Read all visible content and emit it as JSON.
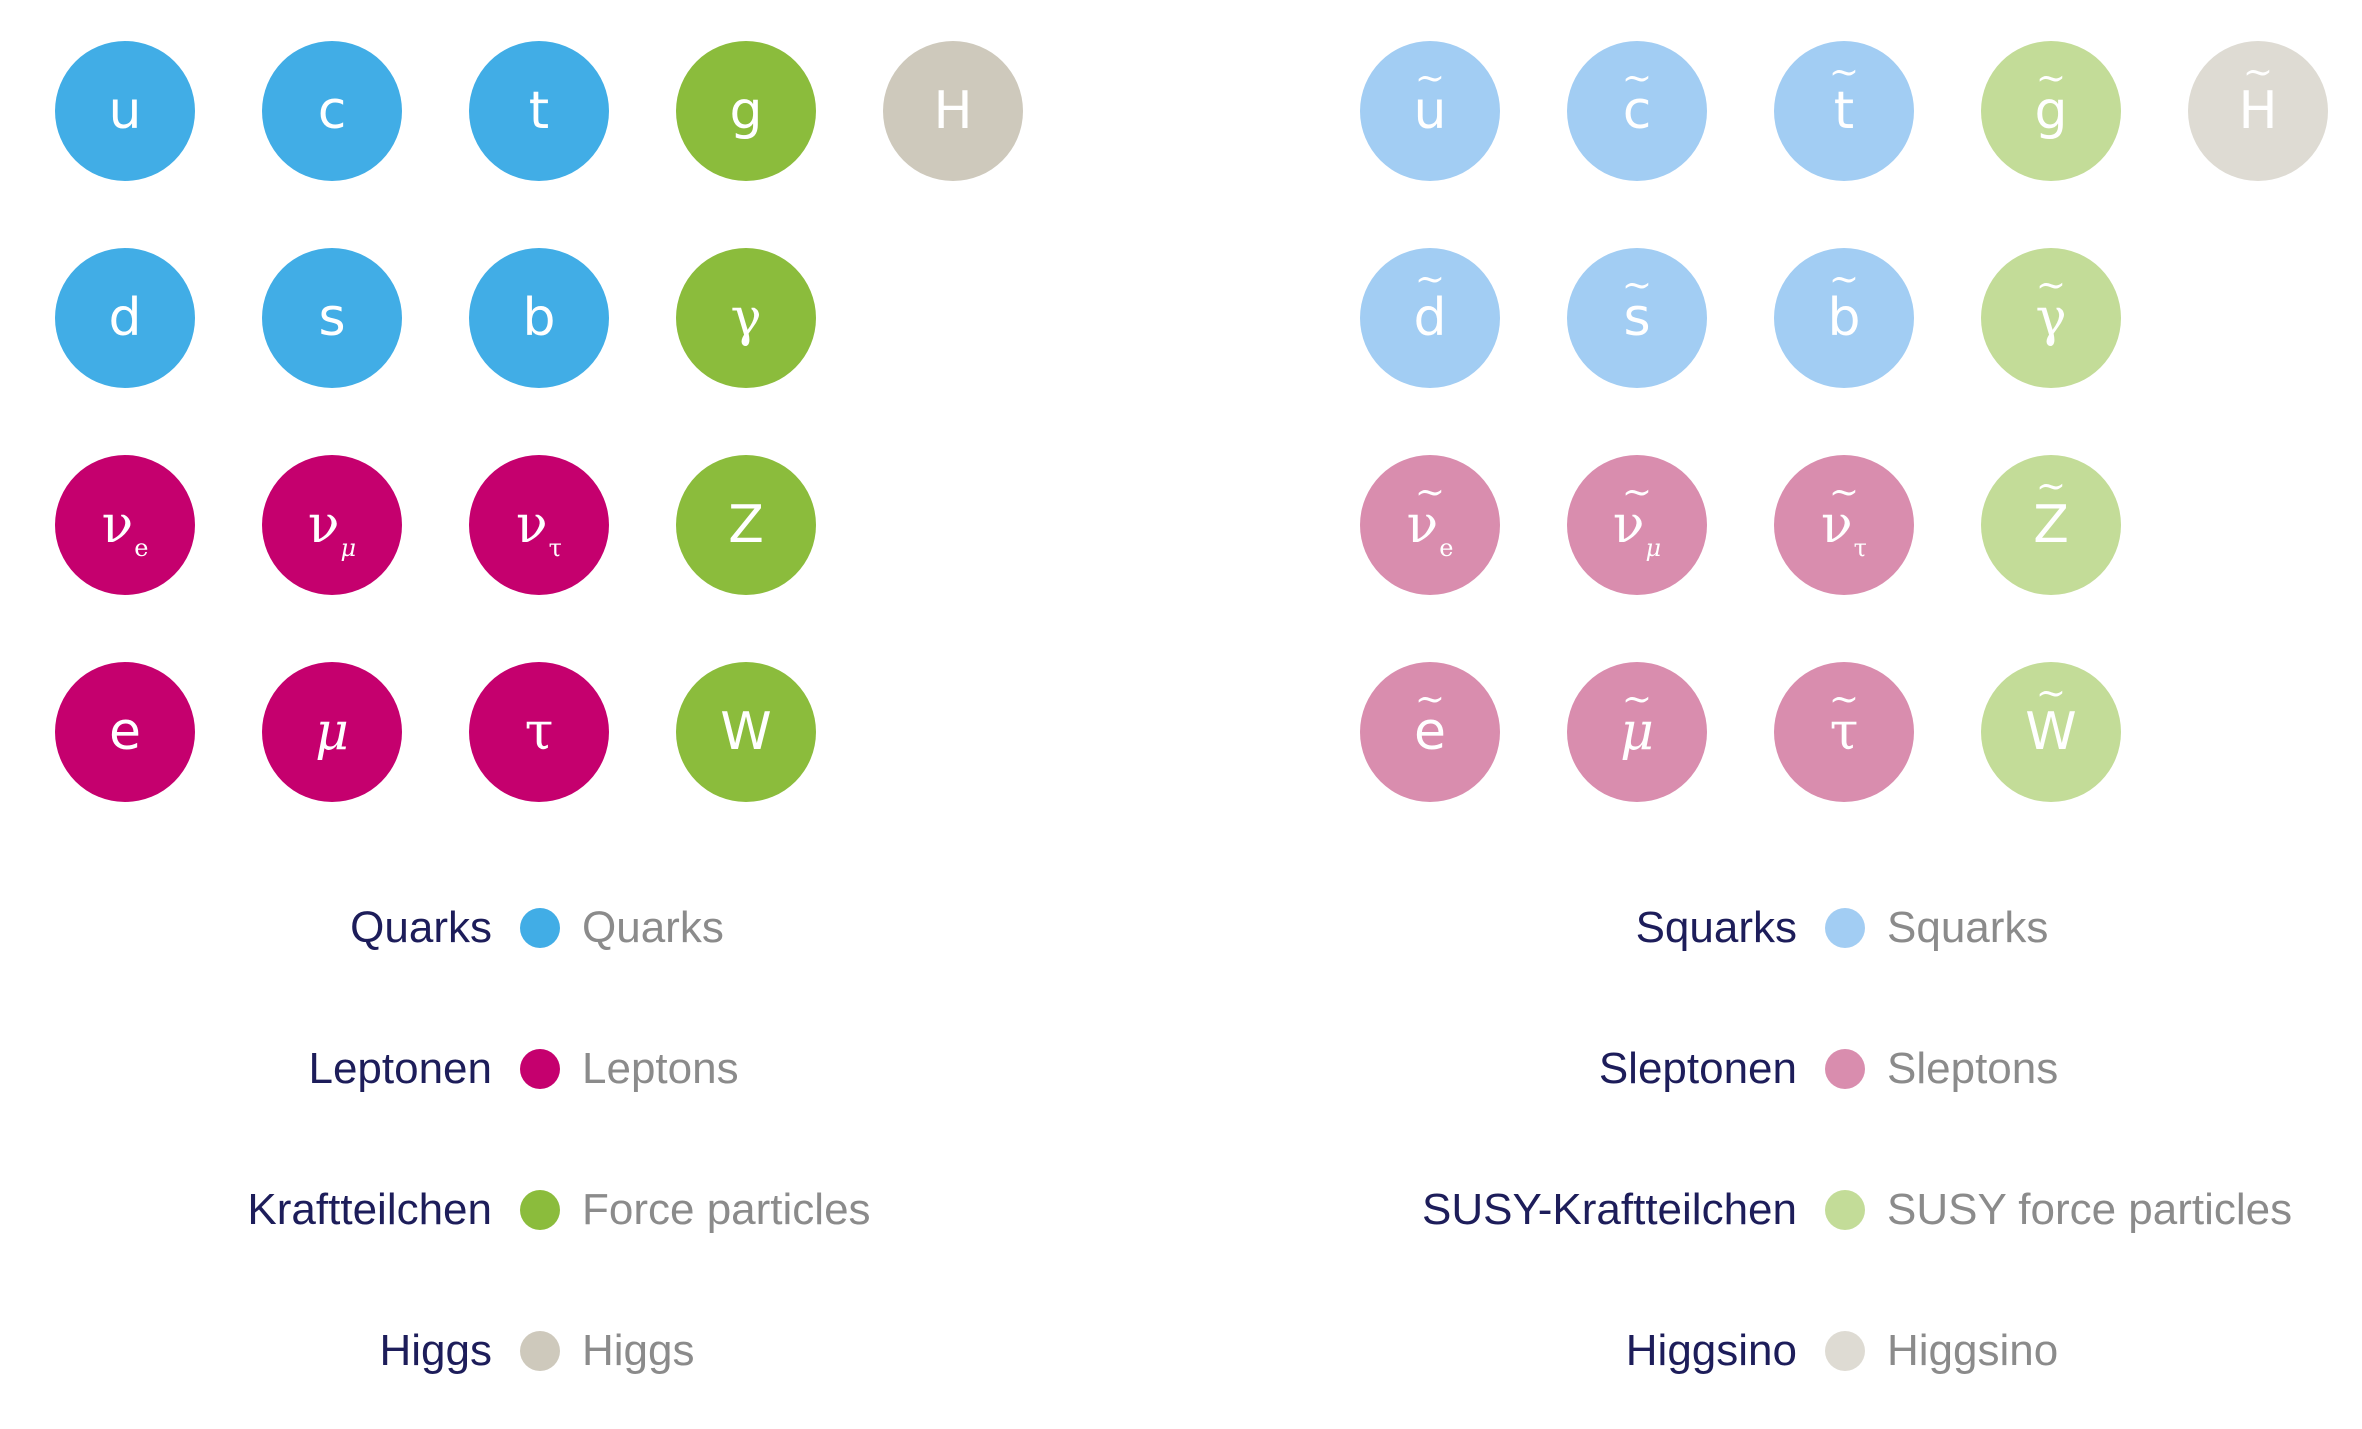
{
  "colors": {
    "quark": "#41ade6",
    "lepton": "#c5006e",
    "force": "#8bbc3c",
    "higgs": "#cec9bc",
    "squark": "#a2cdf3",
    "slepton": "#d98dae",
    "susy_force": "#c3dc98",
    "higgsino": "#dedbd3",
    "label_de": "#1d1d5a",
    "label_en": "#8b8b8b"
  },
  "standard_model": {
    "particles": [
      {
        "id": "u",
        "symbol": "u",
        "sub": "",
        "kind": "quark"
      },
      {
        "id": "c",
        "symbol": "c",
        "sub": "",
        "kind": "quark"
      },
      {
        "id": "t",
        "symbol": "t",
        "sub": "",
        "kind": "quark"
      },
      {
        "id": "g",
        "symbol": "g",
        "sub": "",
        "kind": "force"
      },
      {
        "id": "H",
        "symbol": "H",
        "sub": "",
        "kind": "higgs"
      },
      {
        "id": "d",
        "symbol": "d",
        "sub": "",
        "kind": "quark"
      },
      {
        "id": "s",
        "symbol": "s",
        "sub": "",
        "kind": "quark"
      },
      {
        "id": "b",
        "symbol": "b",
        "sub": "",
        "kind": "quark"
      },
      {
        "id": "gamma",
        "symbol": "γ",
        "sub": "",
        "kind": "force"
      },
      {
        "id": "nu-e",
        "symbol": "ν",
        "sub": "e",
        "kind": "lepton"
      },
      {
        "id": "nu-mu",
        "symbol": "ν",
        "sub": "μ",
        "kind": "lepton"
      },
      {
        "id": "nu-tau",
        "symbol": "ν",
        "sub": "τ",
        "kind": "lepton"
      },
      {
        "id": "Z",
        "symbol": "Z",
        "sub": "",
        "kind": "force"
      },
      {
        "id": "e",
        "symbol": "e",
        "sub": "",
        "kind": "lepton"
      },
      {
        "id": "mu",
        "symbol": "μ",
        "sub": "",
        "kind": "lepton"
      },
      {
        "id": "tau",
        "symbol": "τ",
        "sub": "",
        "kind": "lepton"
      },
      {
        "id": "W",
        "symbol": "W",
        "sub": "",
        "kind": "force"
      }
    ],
    "legend": [
      {
        "de": "Quarks",
        "en": "Quarks",
        "kind": "quark"
      },
      {
        "de": "Leptonen",
        "en": "Leptons",
        "kind": "lepton"
      },
      {
        "de": "Kraftteilchen",
        "en": "Force particles",
        "kind": "force"
      },
      {
        "de": "Higgs",
        "en": "Higgs",
        "kind": "higgs"
      }
    ]
  },
  "supersymmetry": {
    "tilde": "~",
    "particles": [
      {
        "id": "u",
        "symbol": "u",
        "sub": "",
        "kind": "squark"
      },
      {
        "id": "c",
        "symbol": "c",
        "sub": "",
        "kind": "squark"
      },
      {
        "id": "t",
        "symbol": "t",
        "sub": "",
        "kind": "squark"
      },
      {
        "id": "g",
        "symbol": "g",
        "sub": "",
        "kind": "susy_force"
      },
      {
        "id": "H",
        "symbol": "H",
        "sub": "",
        "kind": "higgsino"
      },
      {
        "id": "d",
        "symbol": "d",
        "sub": "",
        "kind": "squark"
      },
      {
        "id": "s",
        "symbol": "s",
        "sub": "",
        "kind": "squark"
      },
      {
        "id": "b",
        "symbol": "b",
        "sub": "",
        "kind": "squark"
      },
      {
        "id": "gamma",
        "symbol": "γ",
        "sub": "",
        "kind": "susy_force"
      },
      {
        "id": "nu-e",
        "symbol": "ν",
        "sub": "e",
        "kind": "slepton"
      },
      {
        "id": "nu-mu",
        "symbol": "ν",
        "sub": "μ",
        "kind": "slepton"
      },
      {
        "id": "nu-tau",
        "symbol": "ν",
        "sub": "τ",
        "kind": "slepton"
      },
      {
        "id": "Z",
        "symbol": "Z",
        "sub": "",
        "kind": "susy_force"
      },
      {
        "id": "e",
        "symbol": "e",
        "sub": "",
        "kind": "slepton"
      },
      {
        "id": "mu",
        "symbol": "μ",
        "sub": "",
        "kind": "slepton"
      },
      {
        "id": "tau",
        "symbol": "τ",
        "sub": "",
        "kind": "slepton"
      },
      {
        "id": "W",
        "symbol": "W",
        "sub": "",
        "kind": "susy_force"
      }
    ],
    "legend": [
      {
        "de": "Squarks",
        "en": "Squarks",
        "kind": "squark"
      },
      {
        "de": "Sleptonen",
        "en": "Sleptons",
        "kind": "slepton"
      },
      {
        "de": "SUSY-Kraftteilchen",
        "en": "SUSY force particles",
        "kind": "susy_force"
      },
      {
        "de": "Higgsino",
        "en": "Higgsino",
        "kind": "higgsino"
      }
    ]
  }
}
